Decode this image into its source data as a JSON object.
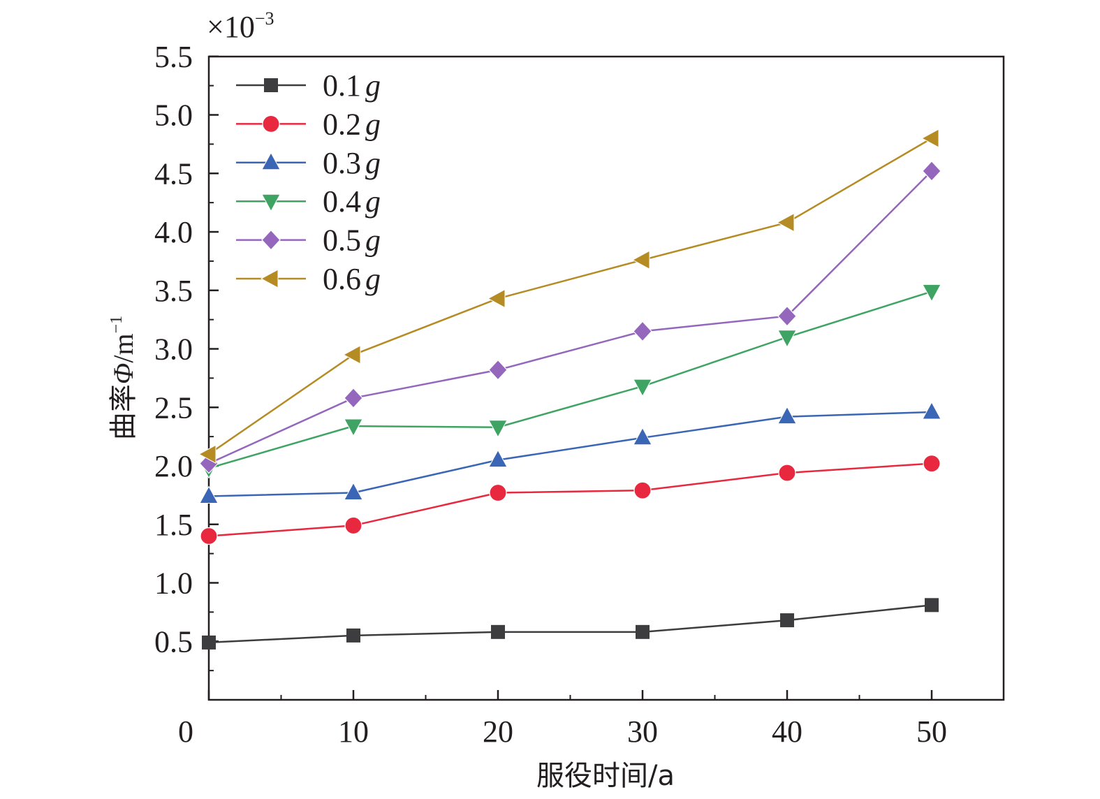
{
  "chart_data": {
    "type": "line",
    "xlabel": "服役时间/a",
    "ylabel": {
      "prefix": "曲率",
      "symbol": "Φ",
      "unit": "/m",
      "unit_exp": "−1"
    },
    "y_multiplier": {
      "base": "×10",
      "exponent": "−3"
    },
    "xlim": [
      0,
      55
    ],
    "ylim": [
      0,
      5.5
    ],
    "x_ticks": [
      0,
      10,
      20,
      30,
      40,
      50
    ],
    "y_ticks": [
      0.5,
      1.0,
      1.5,
      2.0,
      2.5,
      3.0,
      3.5,
      4.0,
      4.5,
      5.0,
      5.5
    ],
    "y_tick_labels": [
      "0.5",
      "1.0",
      "1.5",
      "2.0",
      "2.5",
      "3.0",
      "3.5",
      "4.0",
      "4.5",
      "5.0",
      "5.5"
    ],
    "x_tick_labels": [
      "0",
      "10",
      "20",
      "30",
      "40",
      "50"
    ],
    "x": [
      0,
      10,
      20,
      30,
      40,
      50
    ],
    "legend_position": "top-left",
    "grid": false,
    "series": [
      {
        "name": "0.1",
        "name_unit": "g",
        "color": "#3d3d3f",
        "marker": "square",
        "values": [
          0.49,
          0.55,
          0.58,
          0.58,
          0.68,
          0.81
        ]
      },
      {
        "name": "0.2",
        "name_unit": "g",
        "color": "#e8283f",
        "marker": "circle",
        "values": [
          1.4,
          1.49,
          1.77,
          1.79,
          1.94,
          2.02
        ]
      },
      {
        "name": "0.3",
        "name_unit": "g",
        "color": "#3a66b5",
        "marker": "triangle-up",
        "values": [
          1.74,
          1.77,
          2.05,
          2.24,
          2.42,
          2.46
        ]
      },
      {
        "name": "0.4",
        "name_unit": "g",
        "color": "#3fa463",
        "marker": "triangle-down",
        "values": [
          1.98,
          2.34,
          2.33,
          2.68,
          3.1,
          3.49
        ]
      },
      {
        "name": "0.5",
        "name_unit": "g",
        "color": "#9467bd",
        "marker": "diamond",
        "values": [
          2.02,
          2.58,
          2.82,
          3.15,
          3.28,
          4.52
        ]
      },
      {
        "name": "0.6",
        "name_unit": "g",
        "color": "#b58b23",
        "marker": "triangle-left",
        "values": [
          2.1,
          2.95,
          3.43,
          3.76,
          4.08,
          4.8
        ]
      }
    ]
  }
}
